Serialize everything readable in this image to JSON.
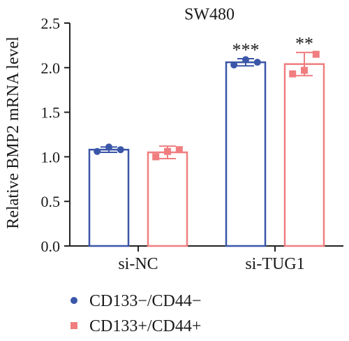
{
  "chart_data": {
    "type": "bar",
    "title": "SW480",
    "ylabel": "Relative BMP2 mRNA level",
    "xlabel": "",
    "ylim": [
      0,
      2.5
    ],
    "yticks": [
      "0.0",
      "0.5",
      "1.0",
      "1.5",
      "2.0",
      "2.5"
    ],
    "ytick_values": [
      0,
      0.5,
      1.0,
      1.5,
      2.0,
      2.5
    ],
    "categories": [
      "si-NC",
      "si-TUG1"
    ],
    "legend_position": "bottom-left",
    "series": [
      {
        "name": "CD133−/CD44−",
        "color": "#3a56a8",
        "marker": "circle",
        "values": [
          1.08,
          2.06
        ],
        "errors": [
          0.03,
          0.04
        ],
        "points": [
          [
            1.06,
            1.11,
            1.08
          ],
          [
            2.03,
            2.09,
            2.06
          ]
        ],
        "significance": [
          "",
          "***"
        ]
      },
      {
        "name": "CD133+/CD44+",
        "color": "#f07e80",
        "marker": "square",
        "values": [
          1.05,
          2.04
        ],
        "errors": [
          0.07,
          0.13
        ],
        "points": [
          [
            1.0,
            1.06,
            1.08
          ],
          [
            1.93,
            1.97,
            2.15
          ]
        ],
        "significance": [
          "",
          "**"
        ]
      }
    ]
  }
}
